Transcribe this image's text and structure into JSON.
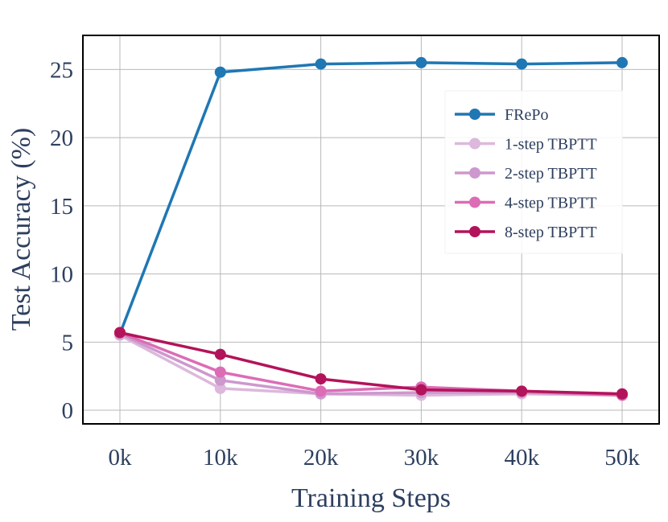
{
  "chart_data": {
    "type": "line",
    "xlabel": "Training Steps",
    "ylabel": "Test Accuracy (%)",
    "x": [
      0,
      10000,
      20000,
      30000,
      40000,
      50000
    ],
    "x_tick_labels": [
      "0k",
      "10k",
      "20k",
      "30k",
      "40k",
      "50k"
    ],
    "y_ticks": [
      0,
      5,
      10,
      15,
      20,
      25
    ],
    "ylim": [
      -1,
      27.5
    ],
    "grid": true,
    "legend_position": "right",
    "series": [
      {
        "name": "FRePo",
        "color": "#1f77b4",
        "values": [
          5.6,
          24.8,
          25.4,
          25.5,
          25.4,
          25.5
        ]
      },
      {
        "name": "1-step TBPTT",
        "color": "#dcb8dc",
        "values": [
          5.5,
          1.6,
          1.2,
          1.1,
          1.2,
          1.1
        ]
      },
      {
        "name": "2-step TBPTT",
        "color": "#cd98cd",
        "values": [
          5.6,
          2.2,
          1.2,
          1.3,
          1.3,
          1.1
        ]
      },
      {
        "name": "4-step TBPTT",
        "color": "#dc6cb6",
        "values": [
          5.7,
          2.8,
          1.4,
          1.7,
          1.4,
          1.1
        ]
      },
      {
        "name": "8-step TBPTT",
        "color": "#b3135a",
        "values": [
          5.7,
          4.1,
          2.3,
          1.5,
          1.4,
          1.2
        ]
      }
    ]
  }
}
